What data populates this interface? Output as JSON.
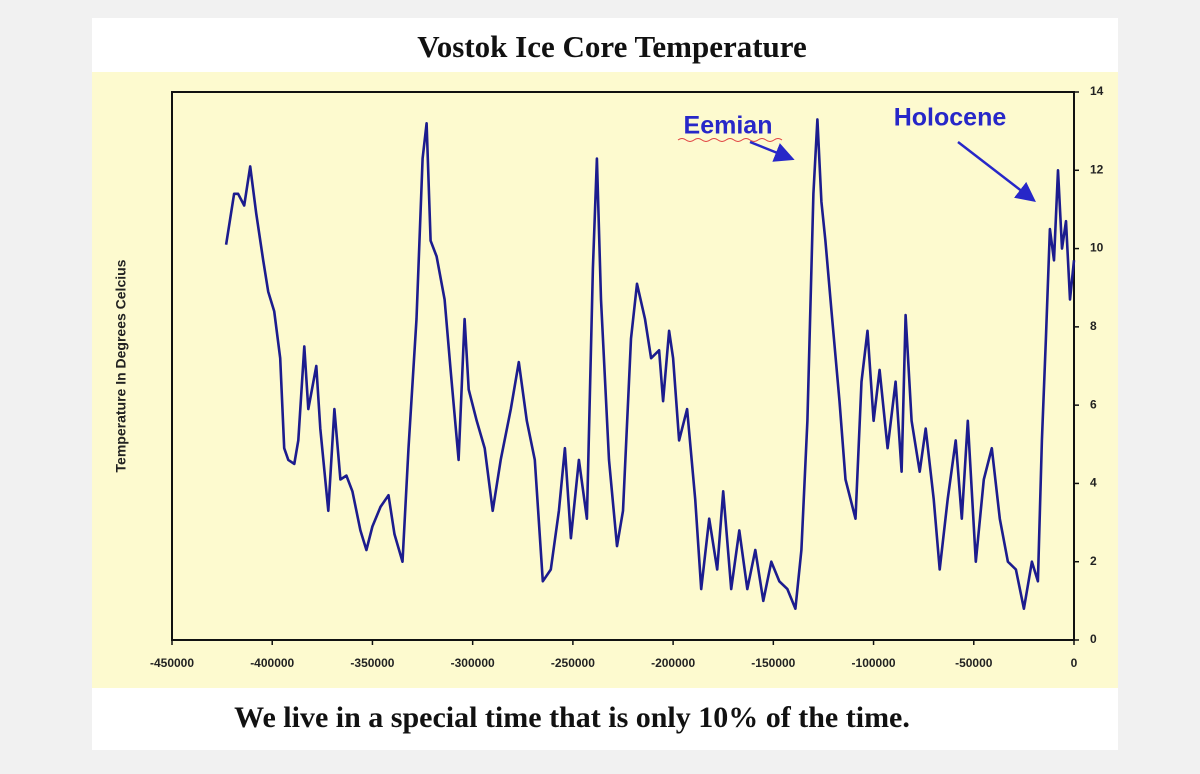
{
  "chart_data": {
    "type": "line",
    "title": "Vostok Ice Core Temperature",
    "caption": "We live in a special time that is only 10% of the time.",
    "y_label": "Temperature In Degrees Celcius",
    "annotations": [
      "Eemian",
      "Holocene"
    ],
    "color": "#1c1c8e",
    "xlim": [
      -450000,
      0
    ],
    "xticks": [
      -450000,
      -400000,
      -350000,
      -300000,
      -250000,
      -200000,
      -150000,
      -100000,
      -50000,
      0
    ],
    "ylim": [
      0,
      14
    ],
    "yticks": [
      0,
      2,
      4,
      6,
      8,
      10,
      12,
      14
    ],
    "x": [
      -423000,
      -419000,
      -417000,
      -414000,
      -411000,
      -408000,
      -404500,
      -402000,
      -399000,
      -396000,
      -394000,
      -392000,
      -389000,
      -387000,
      -384000,
      -382000,
      -378000,
      -376000,
      -372000,
      -369000,
      -366000,
      -363000,
      -360000,
      -356000,
      -353000,
      -350000,
      -346000,
      -342000,
      -339000,
      -335000,
      -332000,
      -328000,
      -325000,
      -323000,
      -321000,
      -318000,
      -314000,
      -311000,
      -307000,
      -304000,
      -302000,
      -298000,
      -294000,
      -290000,
      -286000,
      -281000,
      -277000,
      -273000,
      -269000,
      -265000,
      -261000,
      -257000,
      -254000,
      -251000,
      -247000,
      -243000,
      -240000,
      -238000,
      -236000,
      -232000,
      -228000,
      -225000,
      -221000,
      -218000,
      -214000,
      -211000,
      -207000,
      -205000,
      -202000,
      -200000,
      -197000,
      -193000,
      -189000,
      -186000,
      -182000,
      -178000,
      -175000,
      -171000,
      -167000,
      -163000,
      -159000,
      -155000,
      -151000,
      -147000,
      -143000,
      -139000,
      -136000,
      -133000,
      -130000,
      -128000,
      -126000,
      -124000,
      -121000,
      -117000,
      -114000,
      -109000,
      -106000,
      -103000,
      -100000,
      -97000,
      -93000,
      -89000,
      -86000,
      -84000,
      -81000,
      -77000,
      -74000,
      -70000,
      -67000,
      -63000,
      -59000,
      -56000,
      -53000,
      -49000,
      -45000,
      -41000,
      -37000,
      -33000,
      -29000,
      -25000,
      -21000,
      -18000,
      -16000,
      -14000,
      -12000,
      -10000,
      -8000,
      -6000,
      -4000,
      -2000,
      0
    ],
    "values": [
      10.1,
      11.4,
      11.4,
      11.1,
      12.1,
      10.9,
      9.7,
      8.9,
      8.4,
      7.2,
      4.9,
      4.6,
      4.5,
      5.1,
      7.5,
      5.9,
      7.0,
      5.4,
      3.3,
      5.9,
      4.1,
      4.2,
      3.8,
      2.8,
      2.3,
      2.9,
      3.4,
      3.7,
      2.7,
      2.0,
      4.9,
      8.2,
      12.3,
      13.2,
      10.2,
      9.8,
      8.7,
      6.9,
      4.6,
      8.2,
      6.4,
      5.6,
      4.9,
      3.3,
      4.6,
      5.9,
      7.1,
      5.6,
      4.6,
      1.5,
      1.8,
      3.3,
      4.9,
      2.6,
      4.6,
      3.1,
      9.5,
      12.3,
      8.7,
      4.6,
      2.4,
      3.3,
      7.7,
      9.1,
      8.2,
      7.2,
      7.4,
      6.1,
      7.9,
      7.2,
      5.1,
      5.9,
      3.6,
      1.3,
      3.1,
      1.8,
      3.8,
      1.3,
      2.8,
      1.3,
      2.3,
      1.0,
      2.0,
      1.5,
      1.3,
      0.8,
      2.3,
      5.6,
      11.4,
      13.3,
      11.2,
      10.2,
      8.4,
      6.1,
      4.1,
      3.1,
      6.6,
      7.9,
      5.6,
      6.9,
      4.9,
      6.6,
      4.3,
      8.3,
      5.6,
      4.3,
      5.4,
      3.6,
      1.8,
      3.6,
      5.1,
      3.1,
      5.6,
      2.0,
      4.1,
      4.9,
      3.1,
      2.0,
      1.8,
      0.8,
      2.0,
      1.5,
      5.1,
      7.7,
      10.5,
      9.7,
      12.0,
      10.0,
      10.7,
      8.7,
      9.7
    ]
  }
}
